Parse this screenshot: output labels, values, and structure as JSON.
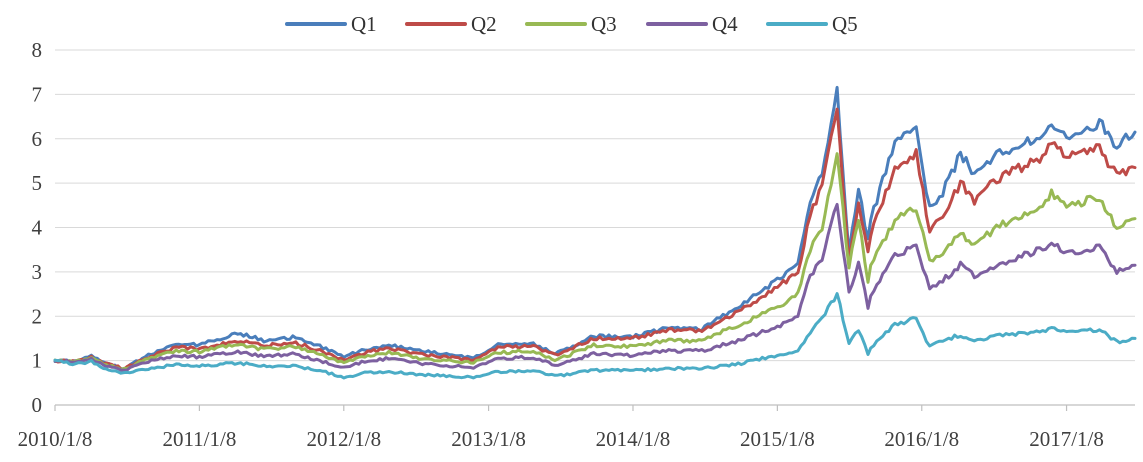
{
  "chart_data": {
    "type": "line",
    "title": "",
    "xlabel": "",
    "ylabel": "",
    "ylim": [
      0,
      8
    ],
    "y_ticks": [
      "0",
      "1",
      "2",
      "3",
      "4",
      "5",
      "6",
      "7",
      "8"
    ],
    "x_range": [
      "2010/1/8",
      "2017/6/30"
    ],
    "x_ticks": [
      "2010/1/8",
      "2011/1/8",
      "2012/1/8",
      "2013/1/8",
      "2014/1/8",
      "2015/1/8",
      "2016/1/8",
      "2017/1/8"
    ],
    "grid": "horizontal",
    "legend_position": "top",
    "series": [
      {
        "name": "Q1",
        "color": "#4A7EBB",
        "points": [
          [
            "2010/1/8",
            1.0
          ],
          [
            "2010/3/1",
            0.98
          ],
          [
            "2010/4/10",
            1.1
          ],
          [
            "2010/5/10",
            0.95
          ],
          [
            "2010/7/1",
            0.82
          ],
          [
            "2010/9/1",
            1.12
          ],
          [
            "2010/11/10",
            1.4
          ],
          [
            "2011/1/8",
            1.35
          ],
          [
            "2011/4/15",
            1.63
          ],
          [
            "2011/6/20",
            1.45
          ],
          [
            "2011/9/1",
            1.53
          ],
          [
            "2011/11/1",
            1.35
          ],
          [
            "2012/1/8",
            1.08
          ],
          [
            "2012/3/1",
            1.25
          ],
          [
            "2012/5/1",
            1.35
          ],
          [
            "2012/8/1",
            1.2
          ],
          [
            "2012/12/1",
            1.05
          ],
          [
            "2013/2/1",
            1.35
          ],
          [
            "2013/5/1",
            1.38
          ],
          [
            "2013/6/25",
            1.15
          ],
          [
            "2013/10/1",
            1.55
          ],
          [
            "2014/1/8",
            1.55
          ],
          [
            "2014/4/1",
            1.72
          ],
          [
            "2014/7/1",
            1.72
          ],
          [
            "2014/10/1",
            2.2
          ],
          [
            "2014/12/1",
            2.6
          ],
          [
            "2015/1/8",
            2.8
          ],
          [
            "2015/3/1",
            3.2
          ],
          [
            "2015/4/1",
            4.6
          ],
          [
            "2015/5/1",
            5.2
          ],
          [
            "2015/6/8",
            7.15
          ],
          [
            "2015/7/8",
            3.4
          ],
          [
            "2015/8/1",
            4.9
          ],
          [
            "2015/8/25",
            3.7
          ],
          [
            "2015/9/1",
            4.2
          ],
          [
            "2015/11/1",
            5.9
          ],
          [
            "2015/12/25",
            6.2
          ],
          [
            "2016/1/28",
            4.4
          ],
          [
            "2016/3/1",
            4.8
          ],
          [
            "2016/4/15",
            5.65
          ],
          [
            "2016/5/20",
            5.2
          ],
          [
            "2016/7/15",
            5.65
          ],
          [
            "2016/9/1",
            5.8
          ],
          [
            "2016/11/1",
            6.1
          ],
          [
            "2016/12/1",
            6.3
          ],
          [
            "2017/1/8",
            6.0
          ],
          [
            "2017/3/1",
            6.2
          ],
          [
            "2017/4/1",
            6.4
          ],
          [
            "2017/5/15",
            5.85
          ],
          [
            "2017/6/30",
            6.15
          ]
        ]
      },
      {
        "name": "Q2",
        "color": "#BE4B48",
        "points": [
          [
            "2010/1/8",
            1.0
          ],
          [
            "2010/3/1",
            0.98
          ],
          [
            "2010/4/10",
            1.08
          ],
          [
            "2010/5/10",
            0.94
          ],
          [
            "2010/7/1",
            0.82
          ],
          [
            "2010/9/1",
            1.08
          ],
          [
            "2010/11/10",
            1.3
          ],
          [
            "2011/1/8",
            1.26
          ],
          [
            "2011/4/15",
            1.45
          ],
          [
            "2011/6/20",
            1.33
          ],
          [
            "2011/9/1",
            1.42
          ],
          [
            "2011/11/1",
            1.25
          ],
          [
            "2012/1/8",
            1.02
          ],
          [
            "2012/3/1",
            1.18
          ],
          [
            "2012/5/1",
            1.28
          ],
          [
            "2012/8/1",
            1.12
          ],
          [
            "2012/12/1",
            1.02
          ],
          [
            "2013/2/1",
            1.3
          ],
          [
            "2013/5/1",
            1.33
          ],
          [
            "2013/6/25",
            1.12
          ],
          [
            "2013/10/1",
            1.5
          ],
          [
            "2014/1/8",
            1.5
          ],
          [
            "2014/4/1",
            1.68
          ],
          [
            "2014/7/1",
            1.68
          ],
          [
            "2014/10/1",
            2.1
          ],
          [
            "2014/12/1",
            2.45
          ],
          [
            "2015/1/8",
            2.65
          ],
          [
            "2015/3/1",
            3.0
          ],
          [
            "2015/4/1",
            4.3
          ],
          [
            "2015/5/1",
            4.9
          ],
          [
            "2015/6/8",
            6.75
          ],
          [
            "2015/7/8",
            3.2
          ],
          [
            "2015/8/1",
            4.5
          ],
          [
            "2015/8/25",
            3.4
          ],
          [
            "2015/9/1",
            3.85
          ],
          [
            "2015/11/1",
            5.3
          ],
          [
            "2015/12/25",
            5.7
          ],
          [
            "2016/1/28",
            3.9
          ],
          [
            "2016/3/1",
            4.3
          ],
          [
            "2016/4/15",
            5.0
          ],
          [
            "2016/5/20",
            4.6
          ],
          [
            "2016/7/15",
            5.1
          ],
          [
            "2016/9/1",
            5.3
          ],
          [
            "2016/11/1",
            5.55
          ],
          [
            "2016/12/1",
            5.9
          ],
          [
            "2017/1/8",
            5.6
          ],
          [
            "2017/3/1",
            5.75
          ],
          [
            "2017/4/1",
            5.8
          ],
          [
            "2017/5/15",
            5.15
          ],
          [
            "2017/6/30",
            5.35
          ]
        ]
      },
      {
        "name": "Q3",
        "color": "#98B954",
        "points": [
          [
            "2010/1/8",
            1.0
          ],
          [
            "2010/3/1",
            0.97
          ],
          [
            "2010/4/10",
            1.06
          ],
          [
            "2010/5/10",
            0.93
          ],
          [
            "2010/7/1",
            0.8
          ],
          [
            "2010/9/1",
            1.04
          ],
          [
            "2010/11/10",
            1.22
          ],
          [
            "2011/1/8",
            1.2
          ],
          [
            "2011/4/15",
            1.38
          ],
          [
            "2011/6/20",
            1.25
          ],
          [
            "2011/9/1",
            1.32
          ],
          [
            "2011/11/1",
            1.17
          ],
          [
            "2012/1/8",
            0.95
          ],
          [
            "2012/3/1",
            1.1
          ],
          [
            "2012/5/1",
            1.18
          ],
          [
            "2012/8/1",
            1.03
          ],
          [
            "2012/12/1",
            0.95
          ],
          [
            "2013/2/1",
            1.18
          ],
          [
            "2013/5/1",
            1.22
          ],
          [
            "2013/6/25",
            1.0
          ],
          [
            "2013/10/1",
            1.35
          ],
          [
            "2014/1/8",
            1.32
          ],
          [
            "2014/4/1",
            1.45
          ],
          [
            "2014/7/1",
            1.45
          ],
          [
            "2014/10/1",
            1.8
          ],
          [
            "2014/12/1",
            2.05
          ],
          [
            "2015/1/8",
            2.2
          ],
          [
            "2015/3/1",
            2.5
          ],
          [
            "2015/4/1",
            3.5
          ],
          [
            "2015/5/1",
            4.0
          ],
          [
            "2015/6/8",
            5.65
          ],
          [
            "2015/7/8",
            3.1
          ],
          [
            "2015/8/1",
            4.2
          ],
          [
            "2015/8/25",
            2.8
          ],
          [
            "2015/9/1",
            3.2
          ],
          [
            "2015/11/1",
            4.15
          ],
          [
            "2015/12/25",
            4.45
          ],
          [
            "2016/1/28",
            3.2
          ],
          [
            "2016/3/1",
            3.45
          ],
          [
            "2016/4/15",
            3.9
          ],
          [
            "2016/5/20",
            3.6
          ],
          [
            "2016/7/15",
            4.0
          ],
          [
            "2016/9/1",
            4.2
          ],
          [
            "2016/11/1",
            4.45
          ],
          [
            "2016/12/1",
            4.75
          ],
          [
            "2017/1/8",
            4.5
          ],
          [
            "2017/3/1",
            4.6
          ],
          [
            "2017/4/1",
            4.7
          ],
          [
            "2017/5/15",
            4.0
          ],
          [
            "2017/6/30",
            4.2
          ]
        ]
      },
      {
        "name": "Q4",
        "color": "#7D60A0",
        "points": [
          [
            "2010/1/8",
            1.0
          ],
          [
            "2010/3/1",
            0.96
          ],
          [
            "2010/4/10",
            1.04
          ],
          [
            "2010/5/10",
            0.9
          ],
          [
            "2010/7/1",
            0.78
          ],
          [
            "2010/9/1",
            0.98
          ],
          [
            "2010/11/10",
            1.12
          ],
          [
            "2011/1/8",
            1.08
          ],
          [
            "2011/4/15",
            1.2
          ],
          [
            "2011/6/20",
            1.1
          ],
          [
            "2011/9/1",
            1.15
          ],
          [
            "2011/11/1",
            1.02
          ],
          [
            "2012/1/8",
            0.85
          ],
          [
            "2012/3/1",
            0.98
          ],
          [
            "2012/5/1",
            1.05
          ],
          [
            "2012/8/1",
            0.92
          ],
          [
            "2012/12/1",
            0.85
          ],
          [
            "2013/2/1",
            1.05
          ],
          [
            "2013/5/1",
            1.08
          ],
          [
            "2013/6/25",
            0.9
          ],
          [
            "2013/10/1",
            1.15
          ],
          [
            "2014/1/8",
            1.12
          ],
          [
            "2014/4/1",
            1.22
          ],
          [
            "2014/7/1",
            1.22
          ],
          [
            "2014/10/1",
            1.45
          ],
          [
            "2014/12/1",
            1.65
          ],
          [
            "2015/1/8",
            1.75
          ],
          [
            "2015/3/1",
            2.0
          ],
          [
            "2015/4/1",
            2.9
          ],
          [
            "2015/5/1",
            3.3
          ],
          [
            "2015/6/8",
            4.55
          ],
          [
            "2015/7/8",
            2.55
          ],
          [
            "2015/8/1",
            3.2
          ],
          [
            "2015/8/25",
            2.2
          ],
          [
            "2015/9/1",
            2.5
          ],
          [
            "2015/11/1",
            3.35
          ],
          [
            "2015/12/25",
            3.6
          ],
          [
            "2016/1/28",
            2.6
          ],
          [
            "2016/3/1",
            2.8
          ],
          [
            "2016/4/15",
            3.15
          ],
          [
            "2016/5/20",
            2.9
          ],
          [
            "2016/7/15",
            3.15
          ],
          [
            "2016/9/1",
            3.3
          ],
          [
            "2016/11/1",
            3.5
          ],
          [
            "2016/12/1",
            3.65
          ],
          [
            "2017/1/8",
            3.45
          ],
          [
            "2017/3/1",
            3.5
          ],
          [
            "2017/4/1",
            3.6
          ],
          [
            "2017/5/15",
            3.0
          ],
          [
            "2017/6/30",
            3.15
          ]
        ]
      },
      {
        "name": "Q5",
        "color": "#4BACC6",
        "points": [
          [
            "2010/1/8",
            1.0
          ],
          [
            "2010/3/1",
            0.92
          ],
          [
            "2010/4/10",
            0.98
          ],
          [
            "2010/5/10",
            0.82
          ],
          [
            "2010/7/1",
            0.72
          ],
          [
            "2010/9/1",
            0.8
          ],
          [
            "2010/11/10",
            0.92
          ],
          [
            "2011/1/8",
            0.88
          ],
          [
            "2011/4/15",
            0.95
          ],
          [
            "2011/6/20",
            0.88
          ],
          [
            "2011/9/1",
            0.88
          ],
          [
            "2011/11/1",
            0.8
          ],
          [
            "2012/1/8",
            0.62
          ],
          [
            "2012/3/1",
            0.72
          ],
          [
            "2012/5/1",
            0.75
          ],
          [
            "2012/8/1",
            0.68
          ],
          [
            "2012/12/1",
            0.62
          ],
          [
            "2013/2/1",
            0.75
          ],
          [
            "2013/5/1",
            0.78
          ],
          [
            "2013/6/25",
            0.65
          ],
          [
            "2013/10/1",
            0.78
          ],
          [
            "2014/1/8",
            0.78
          ],
          [
            "2014/4/1",
            0.82
          ],
          [
            "2014/7/1",
            0.82
          ],
          [
            "2014/10/1",
            0.92
          ],
          [
            "2014/12/1",
            1.05
          ],
          [
            "2015/1/8",
            1.1
          ],
          [
            "2015/3/1",
            1.2
          ],
          [
            "2015/4/1",
            1.65
          ],
          [
            "2015/5/1",
            1.95
          ],
          [
            "2015/6/8",
            2.5
          ],
          [
            "2015/7/8",
            1.4
          ],
          [
            "2015/8/1",
            1.7
          ],
          [
            "2015/8/25",
            1.15
          ],
          [
            "2015/9/1",
            1.3
          ],
          [
            "2015/11/1",
            1.8
          ],
          [
            "2015/12/25",
            1.95
          ],
          [
            "2016/1/28",
            1.3
          ],
          [
            "2016/3/1",
            1.45
          ],
          [
            "2016/4/15",
            1.58
          ],
          [
            "2016/5/20",
            1.45
          ],
          [
            "2016/7/15",
            1.55
          ],
          [
            "2016/9/1",
            1.6
          ],
          [
            "2016/11/1",
            1.65
          ],
          [
            "2016/12/1",
            1.72
          ],
          [
            "2017/1/8",
            1.65
          ],
          [
            "2017/3/1",
            1.68
          ],
          [
            "2017/4/1",
            1.7
          ],
          [
            "2017/5/15",
            1.42
          ],
          [
            "2017/6/30",
            1.5
          ]
        ]
      }
    ]
  }
}
